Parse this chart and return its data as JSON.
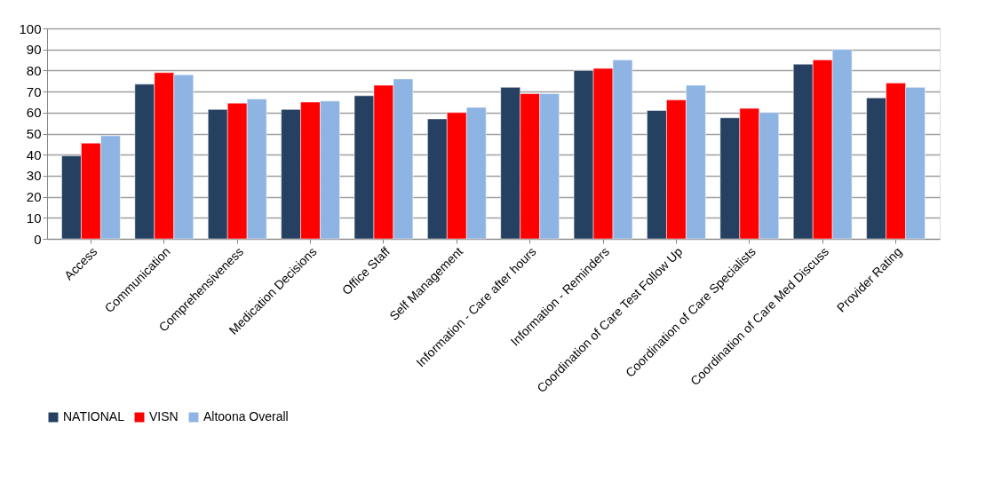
{
  "chart_data": {
    "type": "bar",
    "categories": [
      "Access",
      "Communication",
      "Comprehensiveness",
      "Medication Decisions",
      "Office Staff",
      "Self Management",
      "Information - Care after hours",
      "Information - Reminders",
      "Coordination of Care Test Follow Up",
      "Coordination of Care Specialists",
      "Coordination of Care Med Discuss",
      "Provider Rating"
    ],
    "series": [
      {
        "name": "NATIONAL",
        "color": "#264061",
        "values": [
          39.5,
          73.5,
          61.5,
          61.5,
          68,
          57,
          72,
          80,
          61,
          57.5,
          83,
          67
        ]
      },
      {
        "name": "VISN",
        "color": "#ff0000",
        "values": [
          45.5,
          79,
          64.5,
          65,
          73,
          60,
          69,
          81,
          66,
          62,
          85,
          74
        ]
      },
      {
        "name": "Altoona Overall",
        "color": "#8eb4e3",
        "values": [
          49,
          78,
          66.5,
          65.5,
          76,
          62.5,
          69,
          85,
          73,
          60,
          90,
          72
        ]
      }
    ],
    "ylim": [
      0,
      100
    ],
    "yticks": [
      0,
      10,
      20,
      30,
      40,
      50,
      60,
      70,
      80,
      90,
      100
    ],
    "grid": "y",
    "legend": "bottom"
  }
}
